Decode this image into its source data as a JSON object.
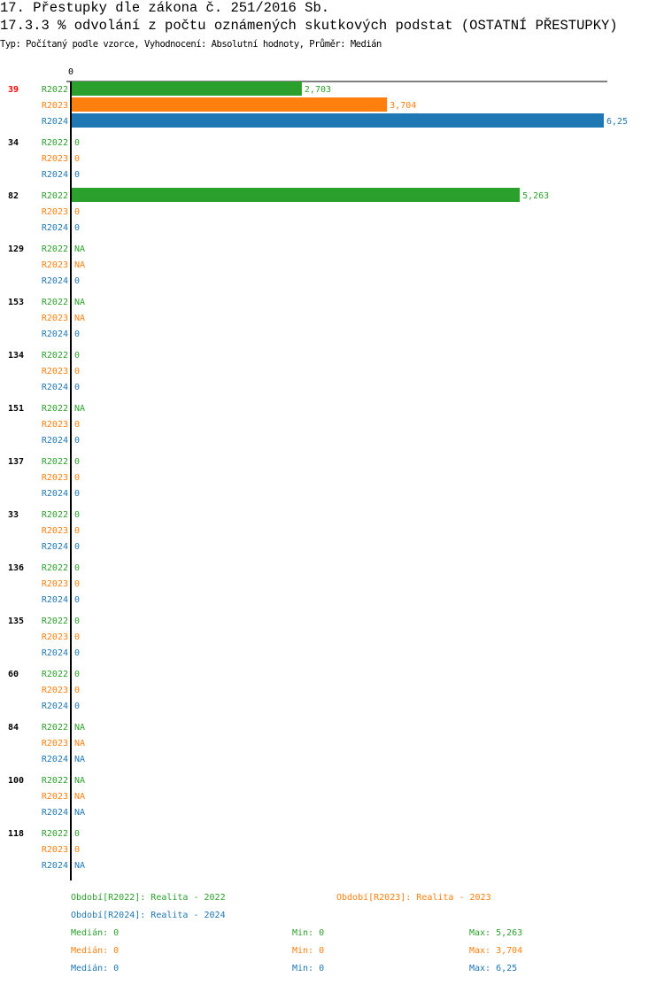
{
  "header": {
    "title": "17. Přestupky dle zákona č. 251/2016 Sb.",
    "subtitle": "17.3.3 % odvolání z počtu oznámených skutkových podstat (OSTATNÍ PŘESTUPKY)",
    "meta": "Typ: Počítaný podle vzorce, Vyhodnocení: Absolutní hodnoty, Průměr: Medián"
  },
  "chart_data": {
    "type": "bar",
    "orientation": "horizontal",
    "xlim": [
      0,
      6.25
    ],
    "x_tick_labels": [
      "0"
    ],
    "grid": false,
    "series_names": [
      "R2022",
      "R2023",
      "R2024"
    ],
    "colors": {
      "R2022": "#2ca02c",
      "R2023": "#ff7f0e",
      "R2024": "#1f77b4",
      "highlight": "#ff0000"
    },
    "highlighted_category": "39",
    "categories": [
      "39",
      "34",
      "82",
      "129",
      "153",
      "134",
      "151",
      "137",
      "33",
      "136",
      "135",
      "60",
      "84",
      "100",
      "118"
    ],
    "series": [
      {
        "name": "R2022",
        "values": [
          2.703,
          0,
          5.263,
          null,
          null,
          0,
          null,
          0,
          0,
          0,
          0,
          0,
          null,
          null,
          0
        ],
        "labels": [
          "2,703",
          "0",
          "5,263",
          "NA",
          "NA",
          "0",
          "NA",
          "0",
          "0",
          "0",
          "0",
          "0",
          "NA",
          "NA",
          "0"
        ]
      },
      {
        "name": "R2023",
        "values": [
          3.704,
          0,
          0,
          null,
          null,
          0,
          0,
          0,
          0,
          0,
          0,
          0,
          null,
          null,
          0
        ],
        "labels": [
          "3,704",
          "0",
          "0",
          "NA",
          "NA",
          "0",
          "0",
          "0",
          "0",
          "0",
          "0",
          "0",
          "NA",
          "NA",
          "0"
        ]
      },
      {
        "name": "R2024",
        "values": [
          6.25,
          0,
          0,
          0,
          0,
          0,
          0,
          0,
          0,
          0,
          0,
          0,
          null,
          null,
          null
        ],
        "labels": [
          "6,25",
          "0",
          "0",
          "0",
          "0",
          "0",
          "0",
          "0",
          "0",
          "0",
          "0",
          "0",
          "NA",
          "NA",
          "NA"
        ]
      }
    ]
  },
  "legend": {
    "periods": [
      "Období[R2022]: Realita - 2022",
      "Období[R2023]: Realita - 2023",
      "Období[R2024]: Realita - 2024"
    ],
    "stats": [
      [
        "Medián: 0",
        "Min: 0",
        "Max: 5,263"
      ],
      [
        "Medián: 0",
        "Min: 0",
        "Max: 3,704"
      ],
      [
        "Medián: 0",
        "Min: 0",
        "Max: 6,25"
      ]
    ]
  }
}
